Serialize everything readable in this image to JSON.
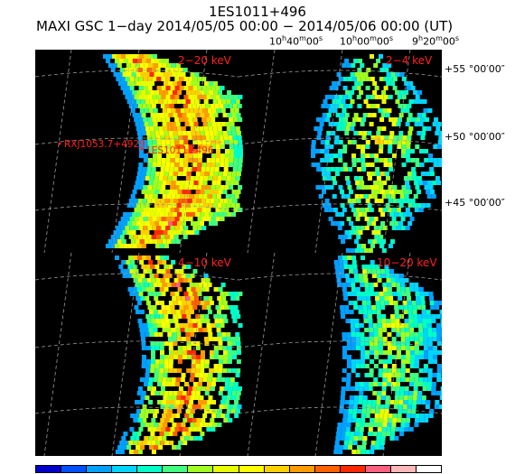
{
  "title": "1ES1011+496",
  "subtitle": "MAXI GSC 1−day 2014/05/05 00:00 − 2014/05/06 00:00 (UT)",
  "ra_labels": [
    {
      "h": "10",
      "m": "40",
      "s": "00"
    },
    {
      "h": "10",
      "m": "00",
      "s": "00"
    },
    {
      "h": "9",
      "m": "20",
      "s": "00"
    }
  ],
  "dec_labels": [
    "+55 °00′00″",
    "+50 °00′00″",
    "+45 °00′00″"
  ],
  "panels": [
    {
      "band": "2−20 keV"
    },
    {
      "band": "2−4 keV"
    },
    {
      "band": "4−10 keV"
    },
    {
      "band": "10−20 keV"
    }
  ],
  "sources": [
    {
      "name": "RXJ1053.7+4929"
    },
    {
      "name": "1ES1011+496"
    }
  ],
  "colors": {
    "label": "#ff2020",
    "grid": "#9a9a9a",
    "colorbar": [
      "#0000c8",
      "#0050ff",
      "#00a0ff",
      "#00d4ff",
      "#00ffc8",
      "#40ff80",
      "#a0ff20",
      "#e8ff00",
      "#ffff00",
      "#ffd000",
      "#ff9c00",
      "#ff6000",
      "#ff2800",
      "#ff6080",
      "#ffb8b8",
      "#ffffff"
    ]
  }
}
